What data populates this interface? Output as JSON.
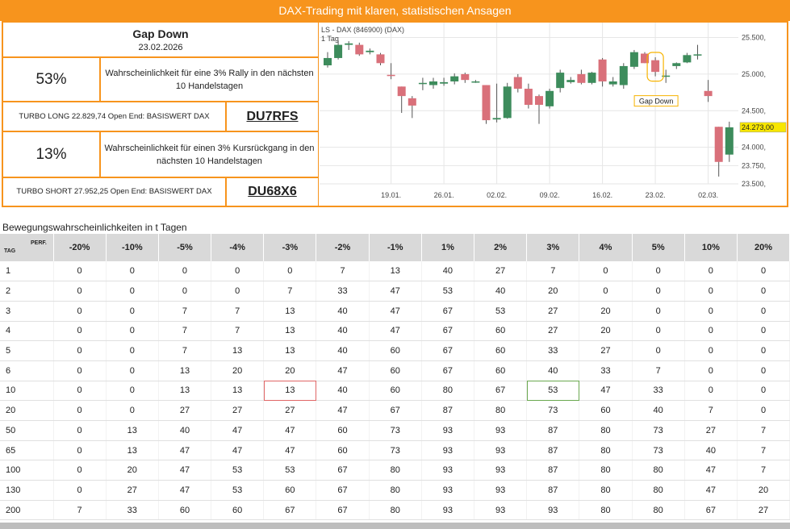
{
  "banner": {
    "title": "DAX-Trading mit klaren, statistischen Ansagen"
  },
  "panel": {
    "title": "Gap Down",
    "date": "23.02.2026",
    "rally": {
      "pct": "53%",
      "text": "Wahrscheinlichkeit für eine 3% Rally in den nächsten 10 Handelstagen"
    },
    "long": {
      "text": "TURBO LONG 22.829,74 Open End: BASISWERT DAX",
      "code": "DU7RFS"
    },
    "drop": {
      "pct": "13%",
      "text": "Wahrscheinlichkeit für einen 3% Kursrückgang in den nächsten 10 Handelstagen"
    },
    "short": {
      "text": "TURBO SHORT 27.952,25 Open End: BASISWERT DAX",
      "code": "DU68X6"
    }
  },
  "chart_data": {
    "type": "candlestick",
    "title": "LS - DAX (846900) (DAX)",
    "subtitle": "1 Tag",
    "ylim": [
      23500,
      25550
    ],
    "yticks": [
      "25.500,",
      "25.000,",
      "24.500,",
      "24.000,",
      "23.750,",
      "23.500,"
    ],
    "ytick_values": [
      25500,
      25000,
      24500,
      24000,
      23750,
      23500
    ],
    "xticks": [
      "19.01.",
      "26.01.",
      "02.02.",
      "09.02.",
      "16.02.",
      "23.02.",
      "02.03."
    ],
    "xtick_index": [
      6,
      11,
      16,
      21,
      26,
      31,
      36
    ],
    "last_price": "24.273,00",
    "annotation": "Gap Down",
    "annotation_index": 31,
    "up_color": "#3d8c5c",
    "down_color": "#d9707a",
    "candles": [
      {
        "o": 25120,
        "h": 25300,
        "l": 25090,
        "c": 25220
      },
      {
        "o": 25220,
        "h": 25460,
        "l": 25200,
        "c": 25400
      },
      {
        "o": 25400,
        "h": 25450,
        "l": 25330,
        "c": 25420
      },
      {
        "o": 25400,
        "h": 25430,
        "l": 25250,
        "c": 25270
      },
      {
        "o": 25300,
        "h": 25350,
        "l": 25270,
        "c": 25320
      },
      {
        "o": 25270,
        "h": 25290,
        "l": 25120,
        "c": 25150
      },
      {
        "o": 24990,
        "h": 25150,
        "l": 24930,
        "c": 24980
      },
      {
        "o": 24830,
        "h": 24830,
        "l": 24470,
        "c": 24700
      },
      {
        "o": 24670,
        "h": 24700,
        "l": 24400,
        "c": 24570
      },
      {
        "o": 24870,
        "h": 24950,
        "l": 24780,
        "c": 24880
      },
      {
        "o": 24850,
        "h": 24950,
        "l": 24800,
        "c": 24900
      },
      {
        "o": 24870,
        "h": 24950,
        "l": 24840,
        "c": 24890
      },
      {
        "o": 24900,
        "h": 25010,
        "l": 24860,
        "c": 24970
      },
      {
        "o": 25000,
        "h": 25020,
        "l": 24880,
        "c": 24920
      },
      {
        "o": 24900,
        "h": 24920,
        "l": 24880,
        "c": 24900
      },
      {
        "o": 24850,
        "h": 24850,
        "l": 24320,
        "c": 24370
      },
      {
        "o": 24380,
        "h": 24870,
        "l": 24340,
        "c": 24400
      },
      {
        "o": 24400,
        "h": 24880,
        "l": 24390,
        "c": 24830
      },
      {
        "o": 24960,
        "h": 25000,
        "l": 24750,
        "c": 24800
      },
      {
        "o": 24800,
        "h": 24870,
        "l": 24530,
        "c": 24580
      },
      {
        "o": 24700,
        "h": 24720,
        "l": 24320,
        "c": 24580
      },
      {
        "o": 24560,
        "h": 24800,
        "l": 24530,
        "c": 24770
      },
      {
        "o": 24810,
        "h": 25060,
        "l": 24750,
        "c": 25020
      },
      {
        "o": 24890,
        "h": 24960,
        "l": 24870,
        "c": 24920
      },
      {
        "o": 25000,
        "h": 25060,
        "l": 24860,
        "c": 24880
      },
      {
        "o": 24880,
        "h": 25030,
        "l": 24860,
        "c": 25020
      },
      {
        "o": 25200,
        "h": 25220,
        "l": 24830,
        "c": 24900
      },
      {
        "o": 24860,
        "h": 24960,
        "l": 24830,
        "c": 24900
      },
      {
        "o": 24850,
        "h": 25150,
        "l": 24800,
        "c": 25110
      },
      {
        "o": 25100,
        "h": 25330,
        "l": 25070,
        "c": 25300
      },
      {
        "o": 25280,
        "h": 25300,
        "l": 25150,
        "c": 25150
      },
      {
        "o": 25190,
        "h": 25230,
        "l": 24970,
        "c": 25030
      },
      {
        "o": 24980,
        "h": 25060,
        "l": 24880,
        "c": 24980
      },
      {
        "o": 25110,
        "h": 25160,
        "l": 25070,
        "c": 25150
      },
      {
        "o": 25160,
        "h": 25290,
        "l": 25150,
        "c": 25260
      },
      {
        "o": 25270,
        "h": 25400,
        "l": 25200,
        "c": 25270
      },
      {
        "o": 24770,
        "h": 24920,
        "l": 24620,
        "c": 24700
      },
      {
        "o": 24280,
        "h": 24280,
        "l": 23600,
        "c": 23800
      },
      {
        "o": 23900,
        "h": 24350,
        "l": 23800,
        "c": 24273
      }
    ]
  },
  "table": {
    "section_title": "Bewegungswahrscheinlichkeiten in t Tagen",
    "corner_tag": "TAG",
    "corner_perf": "PERF.",
    "headers": [
      "-20%",
      "-10%",
      "-5%",
      "-4%",
      "-3%",
      "-2%",
      "-1%",
      "1%",
      "2%",
      "3%",
      "4%",
      "5%",
      "10%",
      "20%"
    ],
    "rows": [
      {
        "day": "1",
        "values": [
          "0",
          "0",
          "0",
          "0",
          "0",
          "7",
          "13",
          "40",
          "27",
          "7",
          "0",
          "0",
          "0",
          "0"
        ]
      },
      {
        "day": "2",
        "values": [
          "0",
          "0",
          "0",
          "0",
          "7",
          "33",
          "47",
          "53",
          "40",
          "20",
          "0",
          "0",
          "0",
          "0"
        ]
      },
      {
        "day": "3",
        "values": [
          "0",
          "0",
          "7",
          "7",
          "13",
          "40",
          "47",
          "67",
          "53",
          "27",
          "20",
          "0",
          "0",
          "0"
        ]
      },
      {
        "day": "4",
        "values": [
          "0",
          "0",
          "7",
          "7",
          "13",
          "40",
          "47",
          "67",
          "60",
          "27",
          "20",
          "0",
          "0",
          "0"
        ]
      },
      {
        "day": "5",
        "values": [
          "0",
          "0",
          "7",
          "13",
          "13",
          "40",
          "60",
          "67",
          "60",
          "33",
          "27",
          "0",
          "0",
          "0"
        ]
      },
      {
        "day": "6",
        "values": [
          "0",
          "0",
          "13",
          "20",
          "20",
          "47",
          "60",
          "67",
          "60",
          "40",
          "33",
          "7",
          "0",
          "0"
        ]
      },
      {
        "day": "10",
        "values": [
          "0",
          "0",
          "13",
          "13",
          "13",
          "40",
          "60",
          "80",
          "67",
          "53",
          "47",
          "33",
          "0",
          "0"
        ]
      },
      {
        "day": "20",
        "values": [
          "0",
          "0",
          "27",
          "27",
          "27",
          "47",
          "67",
          "87",
          "80",
          "73",
          "60",
          "40",
          "7",
          "0"
        ]
      },
      {
        "day": "50",
        "values": [
          "0",
          "13",
          "40",
          "47",
          "47",
          "60",
          "73",
          "93",
          "93",
          "87",
          "80",
          "73",
          "27",
          "7"
        ]
      },
      {
        "day": "65",
        "values": [
          "0",
          "13",
          "47",
          "47",
          "47",
          "60",
          "73",
          "93",
          "93",
          "87",
          "80",
          "73",
          "40",
          "7"
        ]
      },
      {
        "day": "100",
        "values": [
          "0",
          "20",
          "47",
          "53",
          "53",
          "67",
          "80",
          "93",
          "93",
          "87",
          "80",
          "80",
          "47",
          "7"
        ]
      },
      {
        "day": "130",
        "values": [
          "0",
          "27",
          "47",
          "53",
          "60",
          "67",
          "80",
          "93",
          "93",
          "87",
          "80",
          "80",
          "47",
          "20"
        ]
      },
      {
        "day": "200",
        "values": [
          "7",
          "33",
          "60",
          "60",
          "67",
          "67",
          "80",
          "93",
          "93",
          "93",
          "80",
          "80",
          "67",
          "27"
        ]
      }
    ]
  }
}
